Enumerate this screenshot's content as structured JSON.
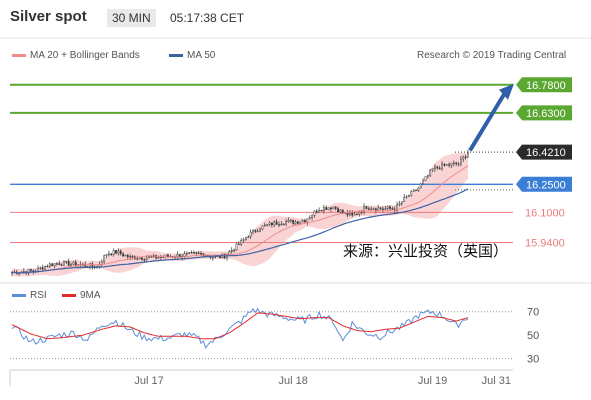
{
  "header": {
    "title": "Silver spot",
    "interval": "30 MIN",
    "time": "05:17:38 CET"
  },
  "legend": {
    "ma20": "MA 20 + Bollinger Bands",
    "ma50": "MA 50",
    "copyright": "Research © 2019 Trading Central",
    "rsi": "RSI",
    "rsi_ma": "9MA"
  },
  "watermark": "来源：兴业投资（英国）",
  "colors": {
    "green_level": "#5aa832",
    "blue_level": "#3a7fd5",
    "red_level": "#ef7b7b",
    "candle": "#3a3a3a",
    "bollinger_fill": "#f8c6c6",
    "ma20": "#ef8c8c",
    "ma50": "#3d62a8",
    "arrow": "#2f5fa8",
    "rsi": "#5b8ed6",
    "rsi_ma": "#e02b2b"
  },
  "chart_data": {
    "type": "line",
    "title": "Silver spot",
    "price_ylim": [
      15.74,
      16.88
    ],
    "price_axis_labels": [
      "16.7800",
      "16.6300",
      "16.4210",
      "16.2500",
      "16.1000",
      "15.9400"
    ],
    "levels": [
      {
        "value": 16.78,
        "label": "16.7800",
        "kind": "resistance",
        "style": "green"
      },
      {
        "value": 16.63,
        "label": "16.6300",
        "kind": "resistance",
        "style": "green"
      },
      {
        "value": 16.421,
        "label": "16.4210",
        "kind": "last_price",
        "style": "dark"
      },
      {
        "value": 16.25,
        "label": "16.2500",
        "kind": "pivot",
        "style": "blue"
      },
      {
        "value": 16.1,
        "label": "16.1000",
        "kind": "support",
        "style": "red"
      },
      {
        "value": 15.94,
        "label": "15.9400",
        "kind": "support",
        "style": "red"
      }
    ],
    "x_tick_labels": [
      "Jul 17",
      "Jul 18",
      "Jul 19",
      "Jul 31"
    ],
    "x_tick_index": [
      58,
      119,
      178,
      205
    ],
    "n_bars": 210,
    "price_anchors": [
      [
        0,
        15.78
      ],
      [
        10,
        15.79
      ],
      [
        15,
        15.82
      ],
      [
        20,
        15.83
      ],
      [
        30,
        15.82
      ],
      [
        36,
        15.81
      ],
      [
        40,
        15.88
      ],
      [
        44,
        15.89
      ],
      [
        50,
        15.86
      ],
      [
        60,
        15.86
      ],
      [
        70,
        15.87
      ],
      [
        80,
        15.88
      ],
      [
        86,
        15.86
      ],
      [
        90,
        15.87
      ],
      [
        96,
        15.93
      ],
      [
        100,
        15.98
      ],
      [
        105,
        16.02
      ],
      [
        110,
        16.04
      ],
      [
        115,
        16.05
      ],
      [
        120,
        16.05
      ],
      [
        124,
        16.06
      ],
      [
        130,
        16.12
      ],
      [
        136,
        16.13
      ],
      [
        140,
        16.1
      ],
      [
        144,
        16.08
      ],
      [
        150,
        16.13
      ],
      [
        156,
        16.12
      ],
      [
        162,
        16.12
      ],
      [
        166,
        16.17
      ],
      [
        172,
        16.23
      ],
      [
        178,
        16.33
      ],
      [
        183,
        16.35
      ],
      [
        189,
        16.36
      ],
      [
        193,
        16.42
      ]
    ],
    "rsi_ylim": [
      22,
      80
    ],
    "rsi_ticks": [
      70,
      50,
      30
    ],
    "rsi_anchors": [
      [
        0,
        58
      ],
      [
        8,
        44
      ],
      [
        15,
        47
      ],
      [
        20,
        50
      ],
      [
        26,
        52
      ],
      [
        32,
        46
      ],
      [
        38,
        59
      ],
      [
        44,
        62
      ],
      [
        50,
        54
      ],
      [
        56,
        48
      ],
      [
        62,
        47
      ],
      [
        68,
        48
      ],
      [
        72,
        51
      ],
      [
        78,
        48
      ],
      [
        82,
        42
      ],
      [
        86,
        46
      ],
      [
        92,
        55
      ],
      [
        97,
        62
      ],
      [
        102,
        72
      ],
      [
        108,
        68
      ],
      [
        114,
        66
      ],
      [
        120,
        63
      ],
      [
        124,
        63
      ],
      [
        130,
        68
      ],
      [
        136,
        62
      ],
      [
        140,
        45
      ],
      [
        144,
        60
      ],
      [
        150,
        52
      ],
      [
        156,
        49
      ],
      [
        160,
        53
      ],
      [
        166,
        58
      ],
      [
        172,
        67
      ],
      [
        178,
        70
      ],
      [
        183,
        66
      ],
      [
        188,
        58
      ],
      [
        193,
        66
      ]
    ],
    "rsi_ma_anchors": [
      [
        0,
        59
      ],
      [
        8,
        51
      ],
      [
        15,
        47
      ],
      [
        22,
        48
      ],
      [
        30,
        50
      ],
      [
        38,
        55
      ],
      [
        44,
        58
      ],
      [
        50,
        57
      ],
      [
        56,
        52
      ],
      [
        62,
        49
      ],
      [
        68,
        49
      ],
      [
        74,
        49
      ],
      [
        80,
        47
      ],
      [
        86,
        47
      ],
      [
        92,
        52
      ],
      [
        98,
        60
      ],
      [
        104,
        69
      ],
      [
        110,
        68
      ],
      [
        116,
        66
      ],
      [
        122,
        64
      ],
      [
        128,
        65
      ],
      [
        134,
        65
      ],
      [
        140,
        58
      ],
      [
        146,
        54
      ],
      [
        152,
        53
      ],
      [
        158,
        55
      ],
      [
        164,
        56
      ],
      [
        170,
        61
      ],
      [
        176,
        66
      ],
      [
        182,
        65
      ],
      [
        188,
        62
      ],
      [
        193,
        65
      ]
    ],
    "forecast_arrow": {
      "from": 16.43,
      "to": 16.78
    }
  }
}
